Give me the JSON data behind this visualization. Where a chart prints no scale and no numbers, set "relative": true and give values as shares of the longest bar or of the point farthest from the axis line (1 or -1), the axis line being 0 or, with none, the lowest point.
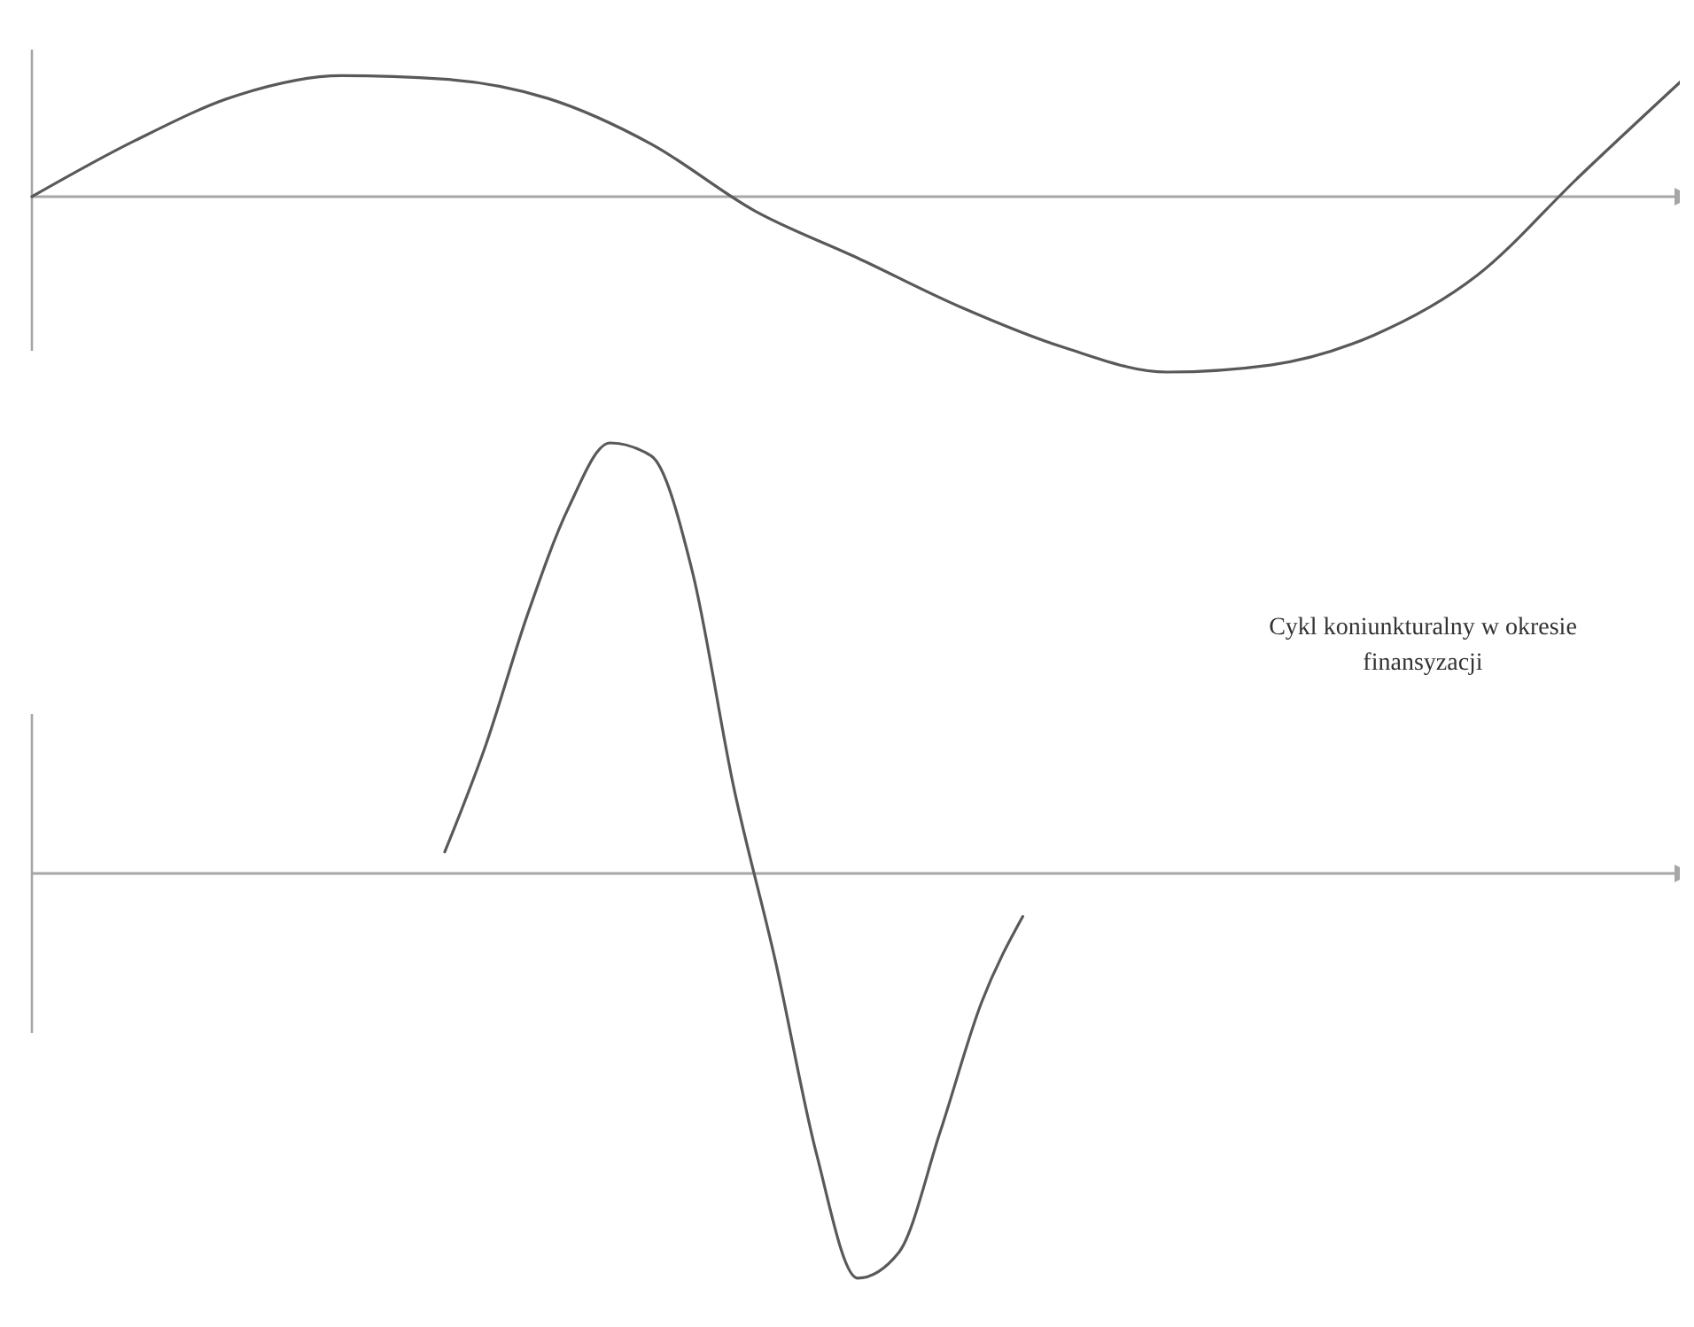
{
  "chart_data": [
    {
      "type": "line",
      "relative": true,
      "categories": [
        null,
        null,
        null,
        null,
        null,
        null,
        null,
        null,
        null,
        null,
        null,
        null,
        null,
        null,
        null,
        null,
        null
      ],
      "series": [
        {
          "color": "#595959",
          "values": [
            0,
            0.32,
            0.58,
            0.69,
            0.67,
            0.56,
            0.3,
            -0.08,
            -0.35,
            -0.63,
            -0.86,
            -1,
            -0.96,
            -0.79,
            -0.45,
            0.12,
            0.67
          ]
        }
      ]
    },
    {
      "type": "line",
      "relative": true,
      "categories": [
        null,
        null,
        null,
        null,
        null,
        null,
        null,
        null,
        null,
        null,
        null,
        null,
        null,
        null,
        null,
        null,
        null,
        null,
        null,
        null,
        null,
        null,
        null,
        null,
        null,
        null,
        null,
        null,
        null,
        null,
        null,
        null,
        null,
        null,
        null,
        null,
        null,
        null,
        null,
        null,
        null
      ],
      "series": [
        {
          "color": "#595959",
          "values": [
            null,
            null,
            null,
            null,
            null,
            null,
            null,
            null,
            null,
            null,
            0.05,
            0.3,
            0.6,
            0.85,
            1,
            0.97,
            0.7,
            0.2,
            -0.2,
            -0.65,
            -0.94,
            -0.88,
            -0.6,
            -0.3,
            -0.1,
            null,
            null,
            null,
            null,
            null,
            null,
            null,
            null,
            null,
            null,
            null,
            null,
            null,
            null,
            null,
            null
          ]
        }
      ],
      "annotations": [
        "Cykl koniunkturalny w okresie finansyzacji"
      ]
    }
  ]
}
